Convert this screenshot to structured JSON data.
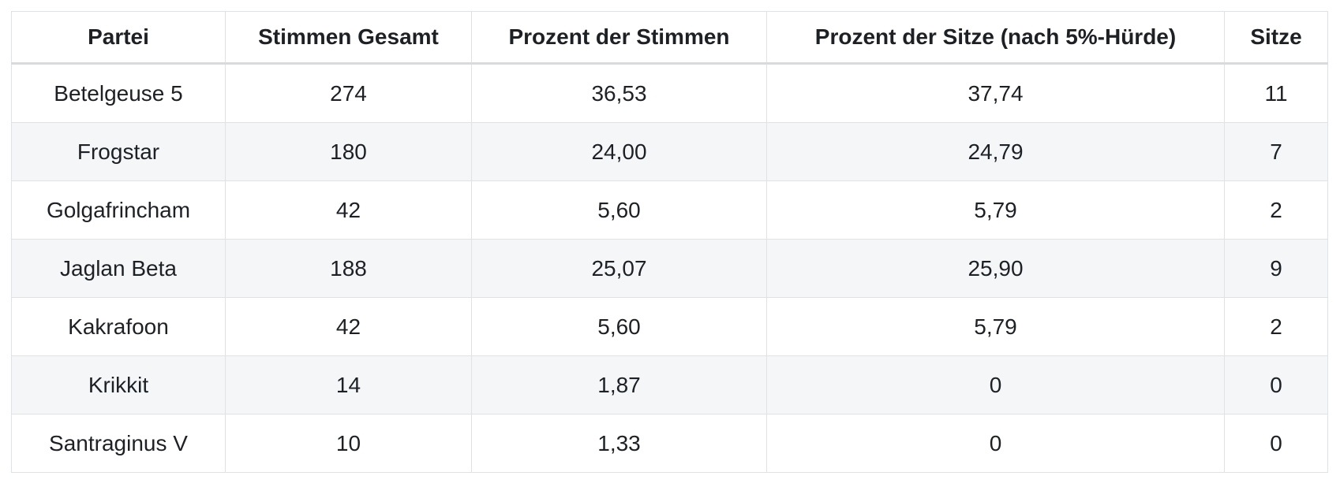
{
  "chart_data": {
    "type": "table",
    "title": "",
    "columns": [
      "Partei",
      "Stimmen Gesamt",
      "Prozent der Stimmen",
      "Prozent der Sitze (nach 5%-Hürde)",
      "Sitze"
    ],
    "rows": [
      [
        "Betelgeuse 5",
        "274",
        "36,53",
        "37,74",
        "11"
      ],
      [
        "Frogstar",
        "180",
        "24,00",
        "24,79",
        "7"
      ],
      [
        "Golgafrincham",
        "42",
        "5,60",
        "5,79",
        "2"
      ],
      [
        "Jaglan Beta",
        "188",
        "25,07",
        "25,90",
        "9"
      ],
      [
        "Kakrafoon",
        "42",
        "5,60",
        "5,79",
        "2"
      ],
      [
        "Krikkit",
        "14",
        "1,87",
        "0",
        "0"
      ],
      [
        "Santraginus V",
        "10",
        "1,33",
        "0",
        "0"
      ]
    ],
    "layout_hints": {
      "striped_rows": "even body rows shaded",
      "alignment": "all cells centered",
      "grid": "full cell borders, thicker header bottom border"
    }
  },
  "colors": {
    "text": "#1d2125",
    "border": "#dfe2e6",
    "header_border": "#d7dbdf",
    "stripe": "#f5f6f8",
    "background": "#ffffff"
  }
}
